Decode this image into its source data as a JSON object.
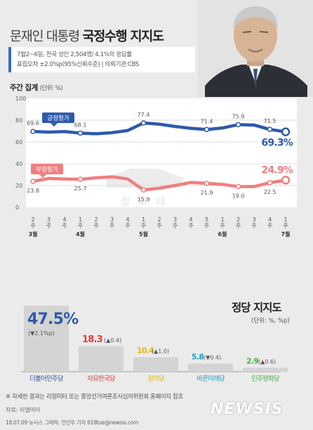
{
  "title": {
    "main": "문재인 대통령 ",
    "bold": "국정수행 지지도"
  },
  "info": {
    "line1": "7월2~6일, 전국 성인 2,504명/ 4.1%의 응답률",
    "line2": "표집오차 ±2.0%p(95%신뢰수준) | 의뢰기관:CBS"
  },
  "weekly": {
    "title": "주간 집계",
    "unit": "(단위: %)"
  },
  "watermark": "청 와 대",
  "chart_data": [
    {
      "type": "line",
      "x": [
        "2주",
        "3주",
        "4주",
        "1주",
        "2주",
        "3주",
        "4주",
        "1주",
        "2주",
        "3주",
        "4주",
        "5주",
        "1주",
        "2주",
        "3주",
        "4주",
        "1주"
      ],
      "months": [
        {
          "label": "3월",
          "at": 0
        },
        {
          "label": "4월",
          "at": 3
        },
        {
          "label": "5월",
          "at": 7
        },
        {
          "label": "6월",
          "at": 12
        },
        {
          "label": "7월",
          "at": 16
        }
      ],
      "ylim": [
        0,
        100
      ],
      "yticks": [
        0,
        20,
        40,
        60,
        80,
        100
      ],
      "grid": true,
      "series": [
        {
          "name": "긍정평가",
          "color": "#2e5aac",
          "values": [
            69.6,
            69.0,
            69.5,
            68.1,
            67.5,
            68.5,
            70.5,
            77.4,
            76.3,
            74.2,
            72.5,
            71.4,
            72.8,
            75.9,
            75.5,
            71.5,
            69.3
          ],
          "labels": {
            "0": "69.6",
            "3": "68.1",
            "7": "77.4",
            "11": "71.4",
            "13": "75.9",
            "15": "71.5",
            "16": "69.3"
          },
          "last_label": "69.3%"
        },
        {
          "name": "부정평가",
          "color": "#ef7f7f",
          "values": [
            23.8,
            26.5,
            26.0,
            25.7,
            27.0,
            28.0,
            26.0,
            15.9,
            17.5,
            20.0,
            22.8,
            21.9,
            21.0,
            19.0,
            19.0,
            22.5,
            24.9
          ],
          "labels": {
            "0": "23.8",
            "3": "25.7",
            "7": "15.9",
            "11": "21.9",
            "13": "19.0",
            "15": "22.5",
            "16": "24.9"
          },
          "last_label": "24.9%"
        }
      ]
    },
    {
      "type": "bar",
      "title": "정당 지지도",
      "unit": "(단위: %, %p)",
      "categories": [
        "더불어민주당",
        "자유한국당",
        "정의당",
        "바른미래당",
        "민주평화당"
      ],
      "values": [
        47.5,
        18.3,
        10.4,
        5.8,
        2.9
      ],
      "changes": [
        "(▼2.1%p)",
        "(▲0.4)",
        "(▲1.0)",
        "(▼0.4)",
        "(▲0.6)"
      ],
      "colors": [
        "#2e5aac",
        "#e83a3a",
        "#e6b800",
        "#1aa0c4",
        "#4caf50"
      ]
    }
  ],
  "footnote": "※ 자세한 결과는 리얼미터 또는 중앙선거여론조사심의위원회 홈페이지 참조",
  "source": "자료: 리얼미터",
  "credit": "18.07.09 뉴시스 그래픽: 전진우 기자 618tue@newsis.com",
  "logo": "NEWSIS"
}
